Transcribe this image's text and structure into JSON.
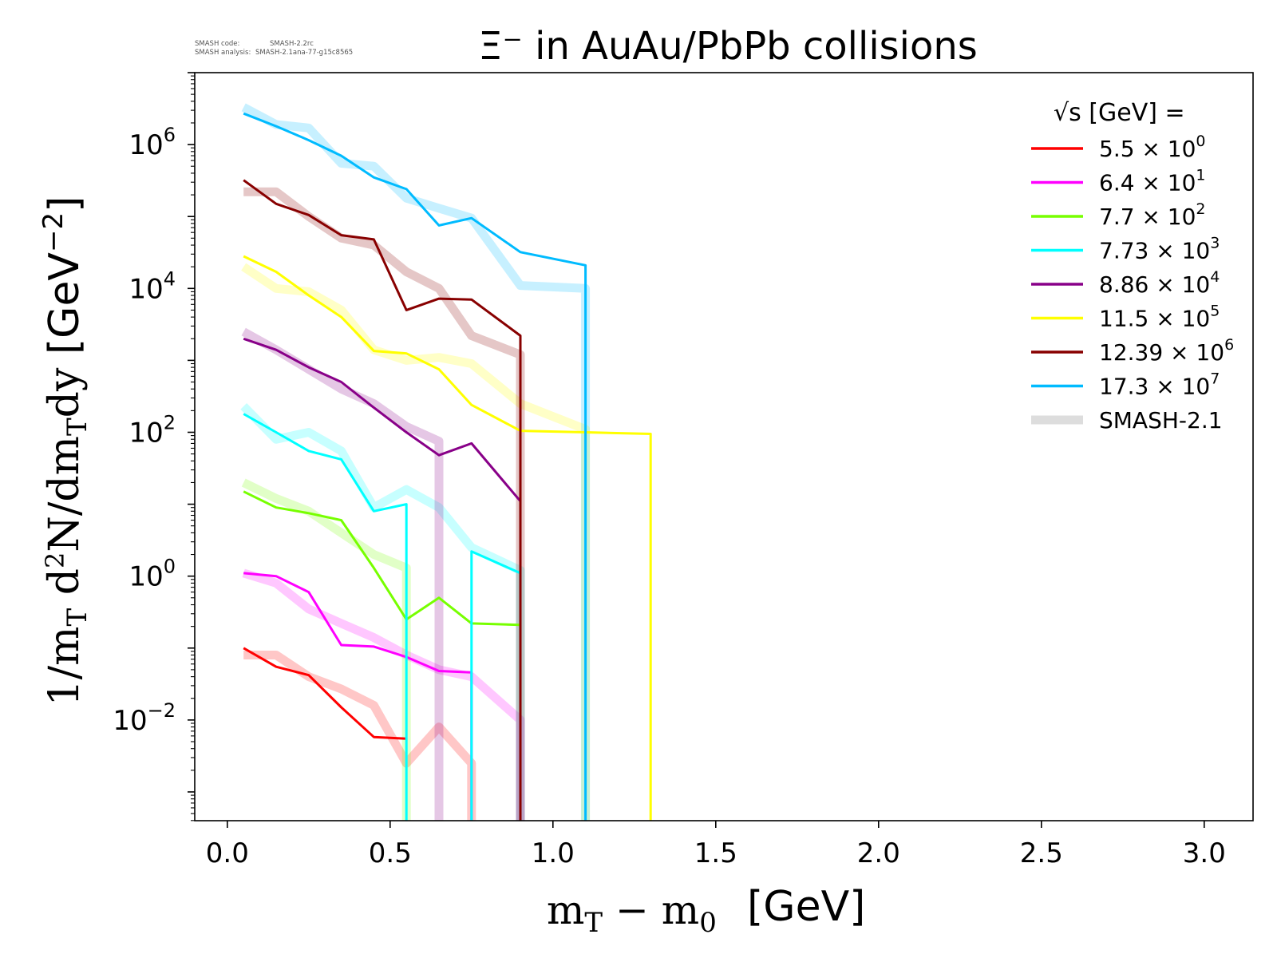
{
  "meta": {
    "code_label": "SMASH code:",
    "code_value": "SMASH-2.2rc",
    "analysis_label": "SMASH analysis:",
    "analysis_value": "SMASH-2.1ana-77-g15c8565"
  },
  "chart_data": {
    "type": "line",
    "title": "Ξ⁻ in AuAu/PbPb collisions",
    "xlabel": "m_T − m_0 [GeV]",
    "ylabel": "1/m_T d²N/dm_Tdy [GeV⁻²]",
    "xlim": [
      -0.1,
      3.15
    ],
    "ylim_log10": [
      -3.4,
      7.0
    ],
    "yscale": "log",
    "grid": false,
    "x_ticks": [
      0.0,
      0.5,
      1.0,
      1.5,
      2.0,
      2.5,
      3.0
    ],
    "x_tick_labels": [
      "0.0",
      "0.5",
      "1.0",
      "1.5",
      "2.0",
      "2.5",
      "3.0"
    ],
    "y_ticks_exp": [
      -2,
      0,
      2,
      4,
      6
    ],
    "legend": {
      "placement": "top-right",
      "title_prefix": "√s",
      "title_suffix": "[GeV] ="
    },
    "series": [
      {
        "name": "5.5 × 10",
        "exp": "0",
        "color": "#ff0000",
        "x": [
          0.05,
          0.15,
          0.25,
          0.35,
          0.45,
          0.55
        ],
        "y": [
          0.1,
          0.055,
          0.042,
          0.015,
          0.0058,
          0.0055
        ],
        "ref": [
          [
            0.05,
            0.08
          ],
          [
            0.15,
            0.08
          ],
          [
            0.25,
            0.04
          ],
          [
            0.35,
            0.027
          ],
          [
            0.45,
            0.016
          ],
          [
            0.55,
            0.0025
          ],
          [
            0.65,
            0.008
          ],
          [
            0.75,
            0.0025
          ]
        ]
      },
      {
        "name": "6.4 × 10",
        "exp": "1",
        "color": "#ff00ff",
        "x": [
          0.05,
          0.15,
          0.25,
          0.35,
          0.45,
          0.55,
          0.65,
          0.75
        ],
        "y": [
          1.1,
          1.0,
          0.6,
          0.11,
          0.105,
          0.075,
          0.048,
          0.046
        ],
        "ref": [
          [
            0.05,
            1.1
          ],
          [
            0.15,
            0.8
          ],
          [
            0.25,
            0.35
          ],
          [
            0.35,
            0.22
          ],
          [
            0.45,
            0.14
          ],
          [
            0.55,
            0.08
          ],
          [
            0.65,
            0.05
          ],
          [
            0.75,
            0.04
          ],
          [
            0.9,
            0.01
          ]
        ]
      },
      {
        "name": "7.7 × 10",
        "exp": "2",
        "color": "#77ff00",
        "x": [
          0.05,
          0.15,
          0.25,
          0.35,
          0.45,
          0.55,
          0.65,
          0.75,
          0.9
        ],
        "y": [
          15.0,
          9.0,
          7.5,
          6.0,
          1.3,
          0.25,
          0.5,
          0.22,
          0.21
        ],
        "ref": [
          [
            0.05,
            20.0
          ],
          [
            0.15,
            12.0
          ],
          [
            0.25,
            8.0
          ],
          [
            0.35,
            4.0
          ],
          [
            0.45,
            2.0
          ],
          [
            0.55,
            1.3
          ]
        ]
      },
      {
        "name": "7.73 × 10",
        "exp": "3",
        "color": "#00ffff",
        "x": [
          0.05,
          0.15,
          0.25,
          0.35,
          0.45,
          0.55,
          0.65,
          0.75,
          0.9
        ],
        "y": [
          180.0,
          100.0,
          55.0,
          42.0,
          8.0,
          10.0,
          null,
          2.2,
          1.1
        ],
        "ref": [
          [
            0.05,
            230.0
          ],
          [
            0.15,
            80.0
          ],
          [
            0.25,
            100.0
          ],
          [
            0.35,
            55.0
          ],
          [
            0.45,
            9.0
          ],
          [
            0.55,
            16.0
          ],
          [
            0.65,
            9.0
          ],
          [
            0.75,
            2.5
          ],
          [
            0.9,
            1.2
          ]
        ]
      },
      {
        "name": "8.86 × 10",
        "exp": "4",
        "color": "#880088",
        "x": [
          0.05,
          0.15,
          0.25,
          0.35,
          0.45,
          0.55,
          0.65,
          0.75,
          0.9
        ],
        "y": [
          2000.0,
          1400.0,
          800.0,
          500.0,
          220.0,
          100.0,
          48.0,
          70.0,
          11.0
        ],
        "ref": [
          [
            0.05,
            2500.0
          ],
          [
            0.15,
            1400.0
          ],
          [
            0.25,
            750.0
          ],
          [
            0.35,
            400.0
          ],
          [
            0.45,
            250.0
          ],
          [
            0.55,
            120.0
          ],
          [
            0.65,
            75.0
          ]
        ]
      },
      {
        "name": "11.5 × 10",
        "exp": "5",
        "color": "#ffff00",
        "x": [
          0.05,
          0.15,
          0.25,
          0.35,
          0.45,
          0.55,
          0.65,
          0.75,
          0.9,
          1.1,
          1.3
        ],
        "y": [
          28000.0,
          17000.0,
          8000.0,
          4000.0,
          1350.0,
          1250.0,
          750.0,
          240.0,
          105.0,
          100.0,
          95.0
        ],
        "ref": [
          [
            0.05,
            20000.0
          ],
          [
            0.15,
            10000.0
          ],
          [
            0.25,
            9000.0
          ],
          [
            0.35,
            5000.0
          ],
          [
            0.45,
            1400.0
          ],
          [
            0.55,
            1000.0
          ],
          [
            0.65,
            1100.0
          ],
          [
            0.75,
            900.0
          ],
          [
            0.9,
            250.0
          ],
          [
            1.1,
            110.0
          ]
        ]
      },
      {
        "name": "12.39 × 10",
        "exp": "6",
        "color": "#880000",
        "x": [
          0.05,
          0.15,
          0.25,
          0.35,
          0.45,
          0.55,
          0.65,
          0.75,
          0.9
        ],
        "y": [
          320000.0,
          150000.0,
          105000.0,
          55000.0,
          48000.0,
          5000.0,
          7200.0,
          7000.0,
          2200.0
        ],
        "ref": [
          [
            0.05,
            220000.0
          ],
          [
            0.15,
            220000.0
          ],
          [
            0.25,
            100000.0
          ],
          [
            0.35,
            50000.0
          ],
          [
            0.45,
            40000.0
          ],
          [
            0.55,
            17000.0
          ],
          [
            0.65,
            10000.0
          ],
          [
            0.75,
            2200.0
          ],
          [
            0.9,
            1200.0
          ]
        ]
      },
      {
        "name": "17.3 × 10",
        "exp": "7",
        "color": "#00bbff",
        "x": [
          0.05,
          0.15,
          0.25,
          0.35,
          0.45,
          0.55,
          0.65,
          0.75,
          0.9,
          1.1
        ],
        "y": [
          2700000.0,
          1800000.0,
          1150000.0,
          700000.0,
          350000.0,
          240000.0,
          75000.0,
          95000.0,
          32000.0,
          21000.0
        ],
        "ref": [
          [
            0.05,
            3300000.0
          ],
          [
            0.15,
            1900000.0
          ],
          [
            0.25,
            1700000.0
          ],
          [
            0.35,
            550000.0
          ],
          [
            0.45,
            500000.0
          ],
          [
            0.55,
            180000.0
          ],
          [
            0.65,
            130000.0
          ],
          [
            0.75,
            95000.0
          ],
          [
            0.9,
            11000.0
          ],
          [
            1.1,
            10000.0
          ]
        ]
      }
    ],
    "reference_label": "SMASH-2.1",
    "reference_color": "#dddddd"
  }
}
